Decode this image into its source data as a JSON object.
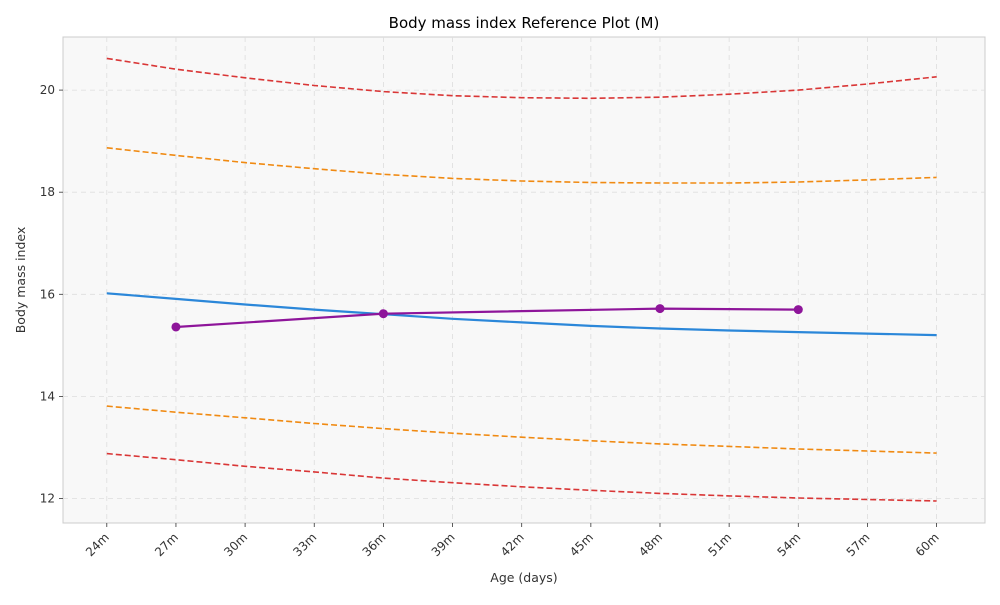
{
  "chart_data": {
    "type": "line",
    "title": "Body mass index Reference Plot (M)",
    "xlabel": "Age (days)",
    "ylabel": "Body mass index",
    "xlim": [
      22.1,
      62.1
    ],
    "ylim": [
      11.52,
      21.04
    ],
    "x_ticks": [
      24,
      27,
      30,
      33,
      36,
      39,
      42,
      45,
      48,
      51,
      54,
      57,
      60
    ],
    "x_tick_labels": [
      "24m",
      "27m",
      "30m",
      "33m",
      "36m",
      "39m",
      "42m",
      "45m",
      "48m",
      "51m",
      "54m",
      "57m",
      "60m"
    ],
    "y_ticks": [
      12,
      14,
      16,
      18,
      20
    ],
    "y_tick_labels": [
      "12",
      "14",
      "16",
      "18",
      "20"
    ],
    "grid": true,
    "x": [
      24,
      27,
      30,
      33,
      36,
      39,
      42,
      45,
      48,
      51,
      54,
      57,
      60
    ],
    "series": [
      {
        "style": "dashed",
        "color": "#d93636",
        "values": [
          20.62,
          20.41,
          20.24,
          20.09,
          19.97,
          19.89,
          19.85,
          19.84,
          19.86,
          19.92,
          20.0,
          20.12,
          20.26
        ]
      },
      {
        "style": "dashed",
        "color": "#f08a12",
        "values": [
          18.87,
          18.72,
          18.58,
          18.46,
          18.35,
          18.27,
          18.22,
          18.19,
          18.18,
          18.18,
          18.2,
          18.24,
          18.29
        ]
      },
      {
        "style": "solid",
        "color": "#2b87d9",
        "values": [
          16.02,
          15.91,
          15.8,
          15.7,
          15.61,
          15.52,
          15.45,
          15.38,
          15.33,
          15.29,
          15.26,
          15.23,
          15.2
        ]
      },
      {
        "style": "dashed",
        "color": "#f08a12",
        "values": [
          13.81,
          13.69,
          13.58,
          13.47,
          13.37,
          13.28,
          13.2,
          13.13,
          13.07,
          13.02,
          12.97,
          12.93,
          12.89
        ]
      },
      {
        "style": "dashed",
        "color": "#d93636",
        "values": [
          12.88,
          12.76,
          12.63,
          12.52,
          12.4,
          12.31,
          12.23,
          12.16,
          12.1,
          12.05,
          12.01,
          11.98,
          11.95
        ]
      }
    ],
    "measurements": {
      "color": "#8e159a",
      "x": [
        27,
        36,
        48,
        54
      ],
      "y": [
        15.36,
        15.62,
        15.72,
        15.7
      ]
    },
    "plot_background": "#f8f8f8"
  }
}
